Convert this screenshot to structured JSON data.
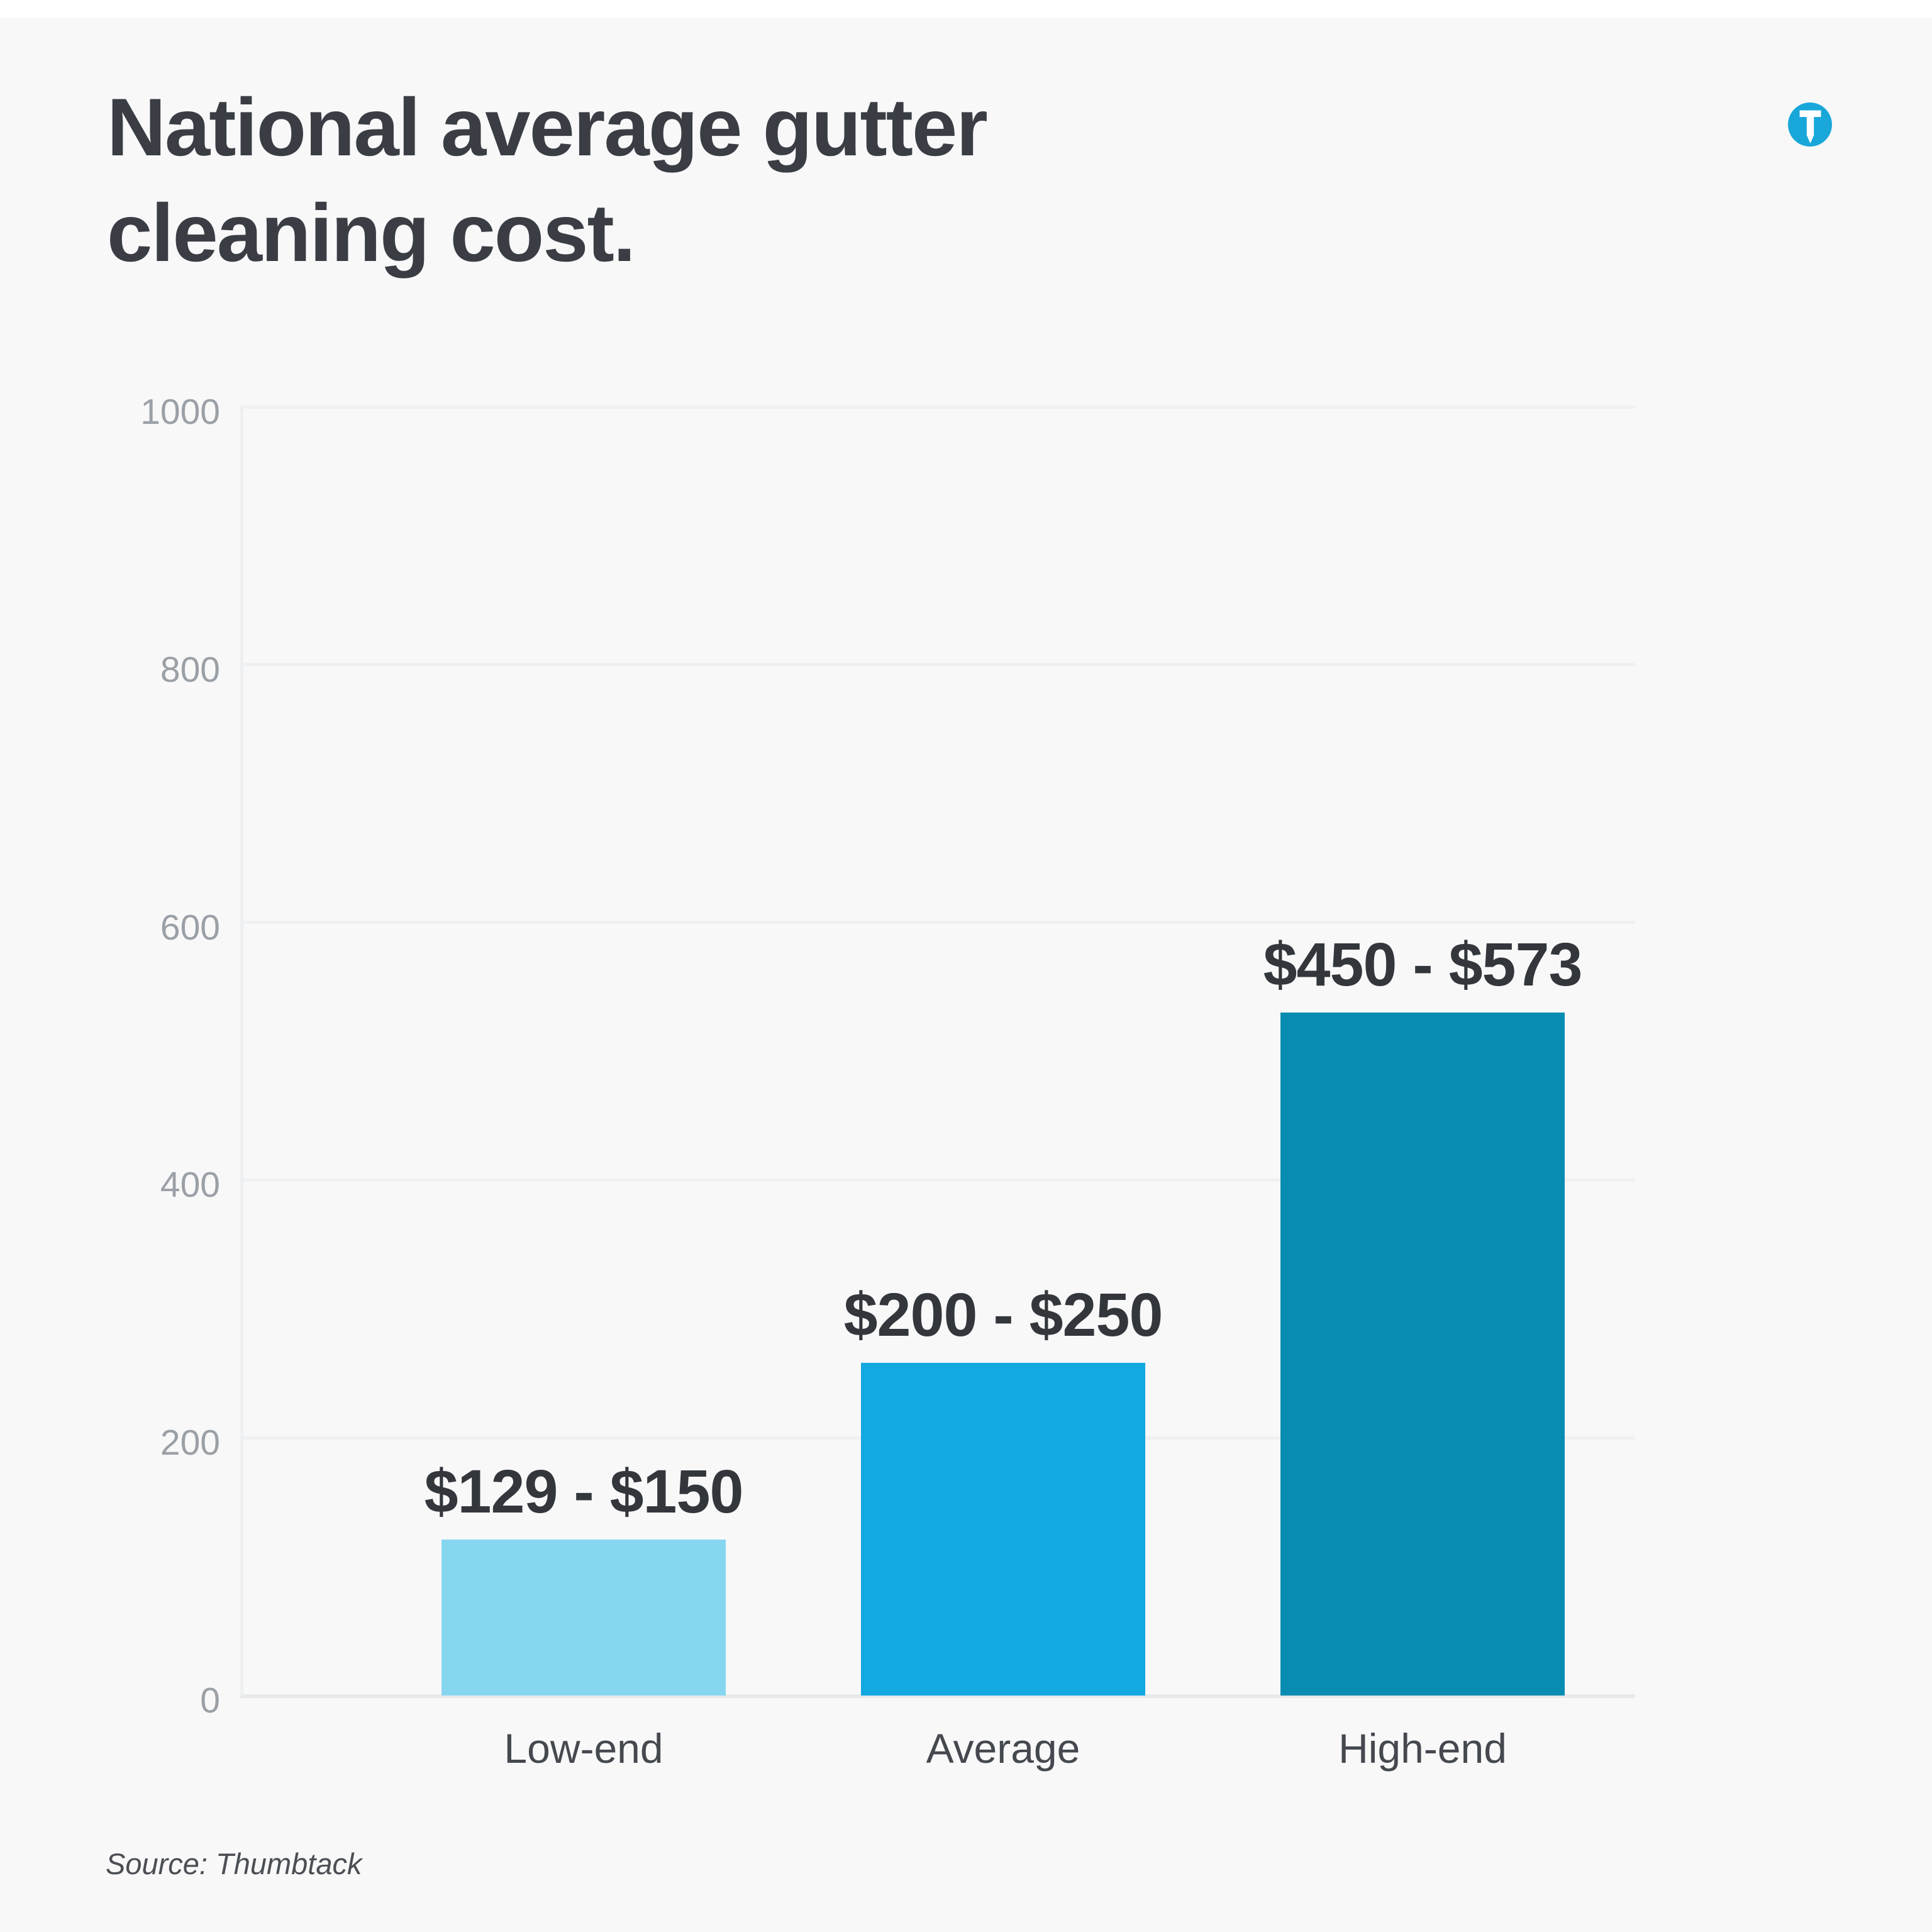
{
  "page": {
    "background_color": "#f8f8f9",
    "top_strip_color": "#ffffff"
  },
  "header": {
    "title_line1": "National average gutter",
    "title_line2": "cleaning cost.",
    "title_color": "#3a3e44",
    "logo": {
      "name": "thumbtack-logo",
      "circle_color": "#19a7da",
      "glyph_color": "#ffffff"
    }
  },
  "footer": {
    "source_text": "Source: Thumbtack"
  },
  "chart_data": {
    "type": "bar",
    "title": "National average gutter cleaning cost.",
    "categories": [
      "Low-end",
      "Average",
      "High-end"
    ],
    "value_labels": [
      "$129 - $150",
      "$200 - $250",
      "$450 - $573"
    ],
    "ranges_usd": [
      [
        129,
        150
      ],
      [
        200,
        250
      ],
      [
        450,
        573
      ]
    ],
    "plotted_bar_heights": [
      121,
      258,
      530
    ],
    "bar_colors": [
      "#87d6f0",
      "#12a8e0",
      "#088cb2"
    ],
    "xlabel": "",
    "ylabel": "",
    "y_axis": {
      "min": 0,
      "max": 1000,
      "tick_step": 200,
      "ticks": [
        0,
        200,
        400,
        600,
        800,
        1000
      ]
    },
    "grid": "horizontal",
    "legend": false,
    "label_text_color": "#33373c",
    "axis_text_color": "#9aa0a6",
    "category_text_color": "#45494f",
    "gridline_color": "#eef0f1"
  }
}
